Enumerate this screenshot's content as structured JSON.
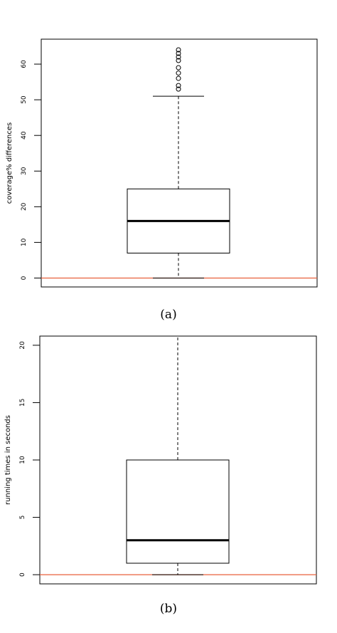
{
  "chart_data": [
    {
      "type": "boxplot",
      "ylabel": "coverage% differences",
      "caption": "(a)",
      "y_ticks": [
        0,
        10,
        20,
        30,
        40,
        50,
        60
      ],
      "ylim": [
        -2.5,
        67
      ],
      "box": {
        "whisker_low": 0,
        "q1": 7,
        "median": 16,
        "q3": 25,
        "whisker_high": 51
      },
      "outliers": [
        53,
        54,
        56,
        57.5,
        59,
        61,
        62,
        63,
        64
      ],
      "reference_line": {
        "y": 0,
        "color": "#e8603c"
      },
      "colors": {
        "box": "#000000",
        "reference": "#e8603c"
      }
    },
    {
      "type": "boxplot",
      "ylabel": "running times in seconds",
      "caption": "(b)",
      "y_ticks": [
        0,
        5,
        10,
        15,
        20
      ],
      "ylim": [
        -0.8,
        20.8
      ],
      "box": {
        "whisker_low": 0,
        "q1": 1,
        "median": 3,
        "q3": 10,
        "whisker_high": 20.8
      },
      "outliers": [],
      "reference_line": {
        "y": 0,
        "color": "#e8603c"
      },
      "colors": {
        "box": "#000000",
        "reference": "#e8603c"
      }
    }
  ]
}
